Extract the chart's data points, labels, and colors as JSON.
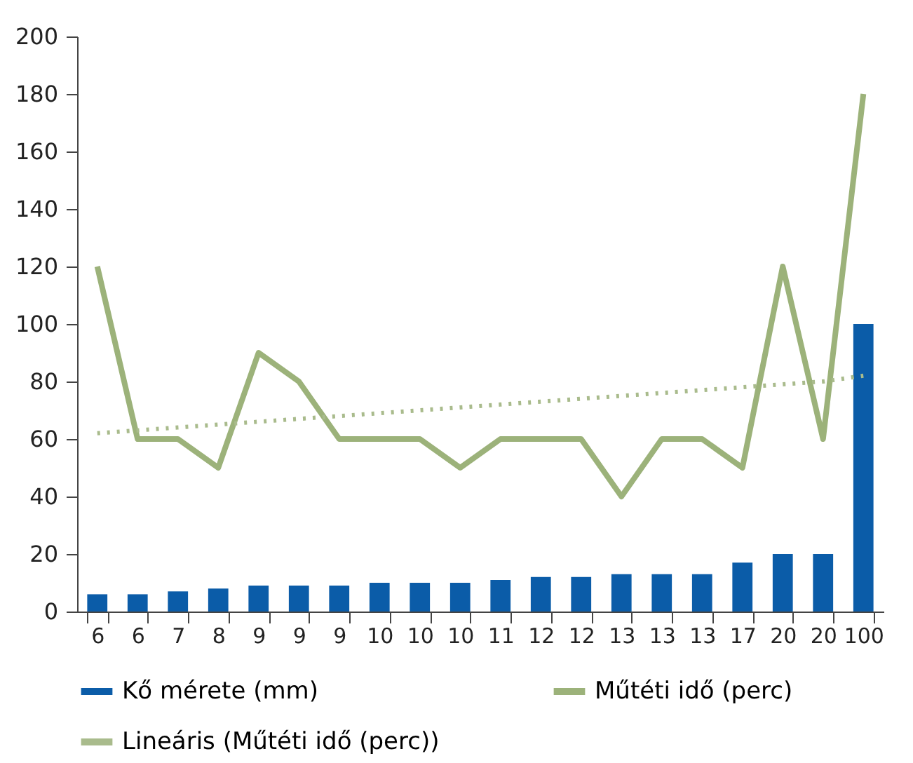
{
  "chart_data": {
    "type": "bar",
    "categories": [
      "6",
      "6",
      "7",
      "8",
      "9",
      "9",
      "9",
      "10",
      "10",
      "10",
      "11",
      "12",
      "12",
      "13",
      "13",
      "13",
      "17",
      "20",
      "20",
      "100"
    ],
    "series": [
      {
        "name": "Kő mérete (mm)",
        "color": "#0b5ca8",
        "values": [
          6,
          6,
          7,
          8,
          9,
          9,
          9,
          10,
          10,
          10,
          11,
          12,
          12,
          13,
          13,
          13,
          17,
          20,
          20,
          100
        ]
      },
      {
        "name": "Műtéti idő (perc)",
        "type": "line",
        "color": "#9cb27a",
        "values": [
          120,
          60,
          60,
          50,
          90,
          80,
          60,
          60,
          60,
          50,
          60,
          60,
          60,
          40,
          60,
          60,
          50,
          120,
          60,
          180
        ]
      },
      {
        "name": "Lineáris (Műtéti idő (perc))",
        "type": "line",
        "line_style": "dotted",
        "color": "#a9bb8c",
        "values": [
          62,
          63,
          64,
          65,
          66,
          67,
          68,
          69,
          70,
          71,
          72,
          73,
          74,
          75,
          76,
          77,
          78,
          79,
          80,
          82
        ]
      }
    ],
    "ylim": [
      0,
      200
    ],
    "yticks": [
      0,
      20,
      40,
      60,
      80,
      100,
      120,
      140,
      160,
      180,
      200
    ],
    "grid": false,
    "legend": "bottom"
  }
}
